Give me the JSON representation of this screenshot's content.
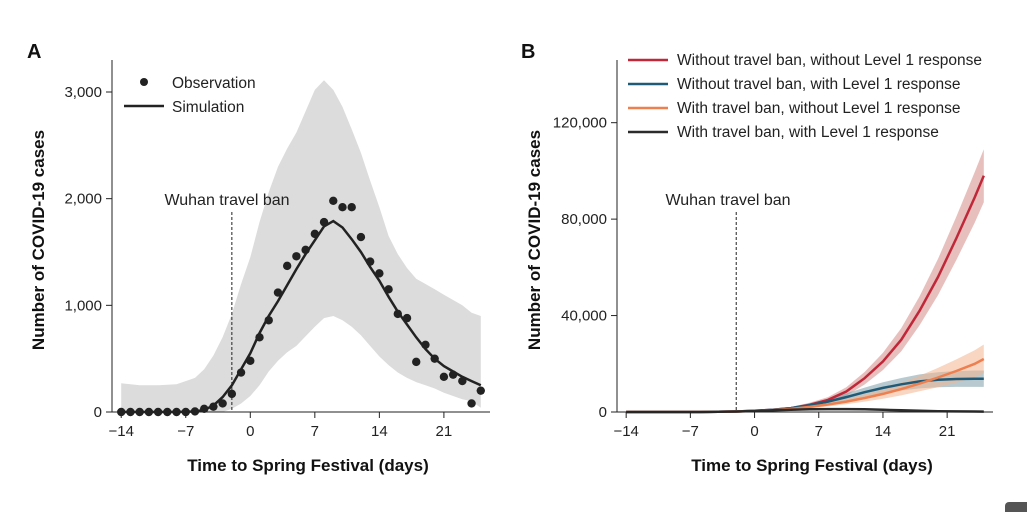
{
  "chart_data": [
    {
      "panel": "A",
      "type": "line",
      "xlabel": "Time to Spring Festival (days)",
      "ylabel": "Number of COVID-19 cases",
      "xticks": [
        -14,
        -7,
        0,
        7,
        14,
        21
      ],
      "xtick_labels": [
        "−14",
        "−7",
        "0",
        "7",
        "14",
        "21"
      ],
      "yticks": [
        0,
        1000,
        2000,
        3000
      ],
      "ytick_labels": [
        "0",
        "1,000",
        "2,000",
        "3,000"
      ],
      "xlim": [
        -15,
        26
      ],
      "ylim": [
        0,
        3300
      ],
      "legend": [
        "Observation",
        "Simulation"
      ],
      "annotation": {
        "label": "Wuhan travel ban",
        "x": -2
      },
      "observation": {
        "x": [
          -14,
          -13,
          -12,
          -11,
          -10,
          -9,
          -8,
          -7,
          -6,
          -5,
          -4,
          -3,
          -2,
          -1,
          0,
          1,
          2,
          3,
          4,
          5,
          6,
          7,
          8,
          9,
          10,
          11,
          12,
          13,
          14,
          15,
          16,
          17,
          18,
          19,
          20,
          21,
          22,
          23,
          24,
          25
        ],
        "y": [
          0,
          0,
          0,
          0,
          0,
          0,
          0,
          0,
          5,
          30,
          50,
          80,
          170,
          370,
          480,
          700,
          860,
          1120,
          1370,
          1460,
          1520,
          1670,
          1780,
          1980,
          1920,
          1920,
          1640,
          1410,
          1300,
          1150,
          920,
          880,
          470,
          630,
          500,
          330,
          350,
          290,
          80,
          200
        ]
      },
      "simulation": {
        "x": [
          -14,
          -12,
          -10,
          -8,
          -6,
          -5,
          -4,
          -3,
          -2,
          -1,
          0,
          1,
          2,
          3,
          4,
          5,
          6,
          7,
          8,
          9,
          10,
          11,
          12,
          13,
          14,
          15,
          16,
          17,
          18,
          19,
          20,
          21,
          22,
          23,
          24,
          25
        ],
        "y": [
          0,
          0,
          0,
          0,
          5,
          20,
          60,
          140,
          250,
          400,
          550,
          740,
          900,
          1040,
          1190,
          1340,
          1480,
          1610,
          1740,
          1790,
          1730,
          1620,
          1500,
          1360,
          1230,
          1080,
          940,
          820,
          700,
          590,
          500,
          430,
          380,
          330,
          290,
          250
        ]
      },
      "band_upper": {
        "x": [
          -14,
          -12,
          -10,
          -8,
          -6,
          -5,
          -4,
          -3,
          -2,
          -1,
          0,
          1,
          2,
          3,
          4,
          5,
          6,
          7,
          8,
          9,
          10,
          11,
          12,
          13,
          14,
          15,
          16,
          17,
          18,
          19,
          20,
          21,
          22,
          23,
          24,
          25
        ],
        "y": [
          270,
          250,
          250,
          260,
          320,
          400,
          530,
          700,
          920,
          1200,
          1450,
          1780,
          2060,
          2300,
          2470,
          2620,
          2820,
          3020,
          3110,
          3020,
          2860,
          2650,
          2430,
          2170,
          1920,
          1650,
          1480,
          1350,
          1250,
          1200,
          1150,
          1100,
          1050,
          1000,
          930,
          900
        ]
      },
      "band_lower": {
        "x": [
          -14,
          -12,
          -10,
          -8,
          -6,
          -5,
          -4,
          -3,
          -2,
          -1,
          0,
          1,
          2,
          3,
          4,
          5,
          6,
          7,
          8,
          9,
          10,
          11,
          12,
          13,
          14,
          15,
          16,
          17,
          18,
          19,
          20,
          21,
          22,
          23,
          24,
          25
        ],
        "y": [
          0,
          0,
          0,
          0,
          0,
          0,
          0,
          0,
          30,
          80,
          150,
          250,
          380,
          480,
          560,
          620,
          710,
          800,
          880,
          900,
          860,
          800,
          720,
          620,
          520,
          440,
          370,
          320,
          280,
          250,
          220,
          180,
          150,
          120,
          100,
          40
        ]
      }
    },
    {
      "panel": "B",
      "type": "line",
      "xlabel": "Time to Spring Festival (days)",
      "ylabel": "Number of COVID-19 cases",
      "xticks": [
        -14,
        -7,
        0,
        7,
        14,
        21
      ],
      "xtick_labels": [
        "−14",
        "−7",
        "0",
        "7",
        "14",
        "21"
      ],
      "yticks": [
        0,
        40000,
        80000,
        120000
      ],
      "ytick_labels": [
        "0",
        "40,000",
        "80,000",
        "120,000"
      ],
      "xlim": [
        -15,
        26
      ],
      "ylim": [
        0,
        146000
      ],
      "legend_position": "top",
      "annotation": {
        "label": "Wuhan travel ban",
        "x": -2
      },
      "x": [
        -14,
        -10,
        -6,
        -4,
        -2,
        0,
        2,
        4,
        6,
        8,
        10,
        12,
        14,
        16,
        18,
        20,
        22,
        24,
        25
      ],
      "series": [
        {
          "name": "Without travel ban, without Level 1 response",
          "color": "#c0283a",
          "band_color": "#d48a86",
          "values": [
            0,
            0,
            0,
            100,
            200,
            500,
            900,
            1600,
            3000,
            5000,
            8500,
            14000,
            21000,
            30000,
            42000,
            56000,
            72000,
            89000,
            98000
          ],
          "band_width": [
            0,
            0,
            0,
            0,
            100,
            200,
            300,
            500,
            800,
            1200,
            1800,
            2600,
            3600,
            4800,
            6000,
            7500,
            9000,
            10500,
            11000
          ]
        },
        {
          "name": "Without travel ban, with Level 1 response",
          "color": "#1f5b78",
          "band_color": "#7d9fa7",
          "values": [
            0,
            0,
            0,
            100,
            200,
            500,
            900,
            1600,
            2800,
            4300,
            6200,
            8200,
            10000,
            11500,
            12700,
            13400,
            13700,
            13800,
            13800
          ],
          "band_width": [
            0,
            0,
            0,
            0,
            100,
            200,
            300,
            500,
            800,
            1100,
            1500,
            1900,
            2300,
            2600,
            2900,
            3100,
            3300,
            3400,
            3400
          ]
        },
        {
          "name": "With travel ban, without Level 1 response",
          "color": "#ee7f4f",
          "band_color": "#f2b48f",
          "values": [
            0,
            0,
            0,
            100,
            200,
            400,
            800,
            1300,
            2100,
            3100,
            4300,
            5800,
            7500,
            9500,
            11800,
            14300,
            17000,
            20000,
            22000
          ],
          "band_width": [
            0,
            0,
            0,
            0,
            100,
            200,
            300,
            400,
            600,
            800,
            1100,
            1500,
            2000,
            2600,
            3200,
            4000,
            4800,
            5600,
            6000
          ]
        },
        {
          "name": "With travel ban, with Level 1 response",
          "color": "#2b2b2b",
          "band_color": "#999999",
          "values": [
            0,
            0,
            0,
            100,
            200,
            400,
            700,
            900,
            1100,
            1200,
            1200,
            1100,
            900,
            700,
            500,
            350,
            250,
            200,
            150
          ],
          "band_width": [
            0,
            0,
            0,
            0,
            0,
            50,
            80,
            100,
            100,
            100,
            100,
            100,
            100,
            80,
            60,
            50,
            40,
            30,
            30
          ]
        }
      ]
    }
  ]
}
